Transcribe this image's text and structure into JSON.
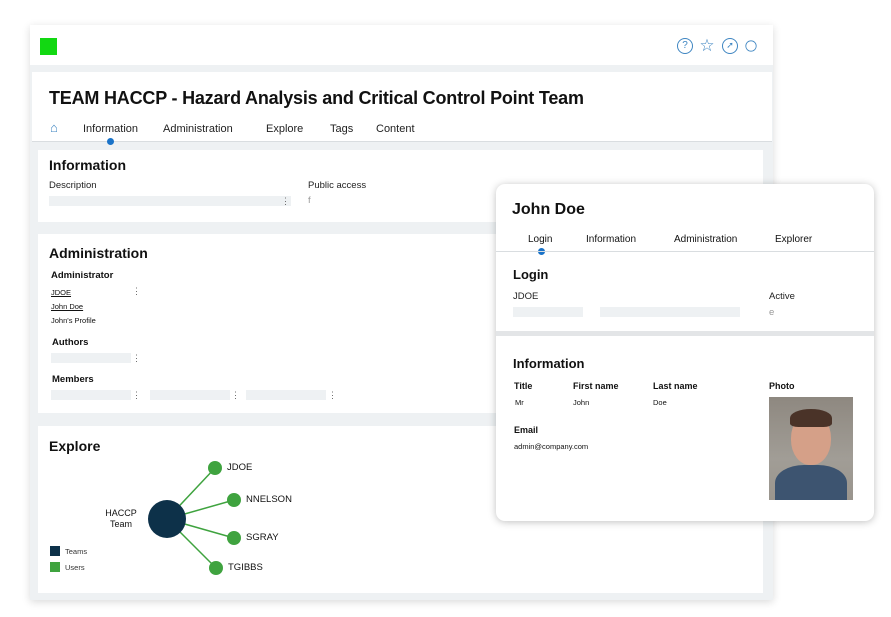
{
  "app": {
    "logo_color": "#12d812",
    "icons": [
      "help-icon",
      "star-icon",
      "compass-icon",
      "search-icon"
    ]
  },
  "page": {
    "title": "TEAM HACCP - Hazard Analysis and Critical Control Point Team",
    "tabs": [
      {
        "label": "Information",
        "active": true
      },
      {
        "label": "Administration"
      },
      {
        "label": "Explore"
      },
      {
        "label": "Tags"
      },
      {
        "label": "Content"
      }
    ]
  },
  "information": {
    "heading": "Information",
    "description_label": "Description",
    "public_access_label": "Public access",
    "public_access_value": "f"
  },
  "administration": {
    "heading": "Administration",
    "administrator_label": "Administrator",
    "admin_login": "JDOE",
    "admin_name": "John Doe",
    "admin_profile": "John's Profile",
    "authors_label": "Authors",
    "members_label": "Members"
  },
  "explore": {
    "heading": "Explore",
    "center": "HACCP Team",
    "nodes": [
      "JDOE",
      "NNELSON",
      "SGRAY",
      "TGIBBS"
    ],
    "legend": [
      {
        "label": "Teams",
        "color": "#0d3149"
      },
      {
        "label": "Users",
        "color": "#3fa33f"
      }
    ]
  },
  "user_card": {
    "name": "John Doe",
    "tabs": [
      {
        "label": "Login",
        "active": true
      },
      {
        "label": "Information"
      },
      {
        "label": "Administration"
      },
      {
        "label": "Explorer"
      }
    ],
    "login": {
      "heading": "Login",
      "login_label": "JDOE",
      "active_label": "Active",
      "active_value": "e"
    },
    "information": {
      "heading": "Information",
      "title_label": "Title",
      "title_value": "Mr",
      "first_label": "First name",
      "first_value": "John",
      "last_label": "Last name",
      "last_value": "Doe",
      "photo_label": "Photo",
      "email_label": "Email",
      "email_value": "admin@company.com"
    }
  }
}
